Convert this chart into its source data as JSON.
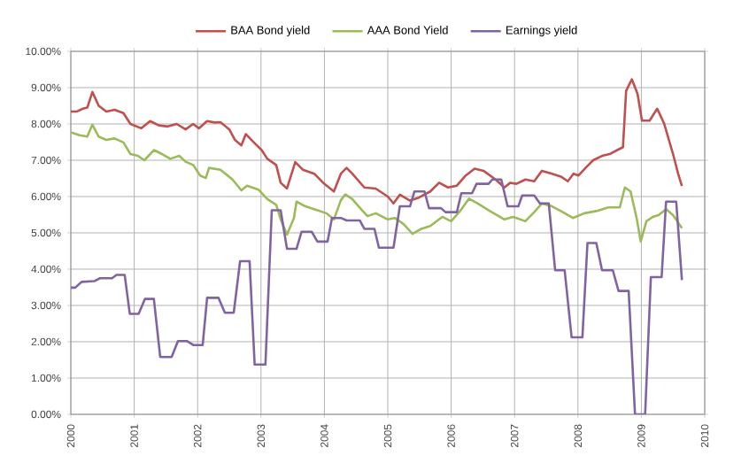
{
  "chart_data": {
    "type": "line",
    "xlim": [
      2000,
      2010
    ],
    "ylim": [
      0,
      10
    ],
    "xticks": [
      2000,
      2001,
      2002,
      2003,
      2004,
      2005,
      2006,
      2007,
      2008,
      2009,
      2010
    ],
    "yticks": [
      {
        "value": 0,
        "label": "0.00%"
      },
      {
        "value": 1,
        "label": "1.00%"
      },
      {
        "value": 2,
        "label": "2.00%"
      },
      {
        "value": 3,
        "label": "3.00%"
      },
      {
        "value": 4,
        "label": "4.00%"
      },
      {
        "value": 5,
        "label": "5.00%"
      },
      {
        "value": 6,
        "label": "6.00%"
      },
      {
        "value": 7,
        "label": "7.00%"
      },
      {
        "value": 8,
        "label": "8.00%"
      },
      {
        "value": 9,
        "label": "9.00%"
      },
      {
        "value": 10,
        "label": "10.00%"
      }
    ],
    "grid": true,
    "legend": "top",
    "marker": "none",
    "line_style": "solid",
    "series": [
      {
        "name": "BAA Bond yield",
        "color": "#c0504d",
        "x": [
          2000.0,
          2000.09,
          2000.19,
          2000.26,
          2000.34,
          2000.44,
          2000.56,
          2000.69,
          2000.83,
          2000.94,
          2001.11,
          2001.25,
          2001.39,
          2001.53,
          2001.67,
          2001.81,
          2001.93,
          2002.02,
          2002.15,
          2002.27,
          2002.36,
          2002.5,
          2002.59,
          2002.69,
          2002.76,
          2002.87,
          2003.01,
          2003.1,
          2003.24,
          2003.31,
          2003.41,
          2003.54,
          2003.66,
          2003.84,
          2003.98,
          2004.15,
          2004.26,
          2004.35,
          2004.44,
          2004.63,
          2004.81,
          2005.0,
          2005.09,
          2005.19,
          2005.35,
          2005.49,
          2005.67,
          2005.81,
          2005.95,
          2006.09,
          2006.23,
          2006.37,
          2006.51,
          2006.7,
          2006.84,
          2006.93,
          2007.03,
          2007.17,
          2007.31,
          2007.43,
          2007.59,
          2007.73,
          2007.84,
          2007.93,
          2008.01,
          2008.12,
          2008.24,
          2008.38,
          2008.5,
          2008.62,
          2008.71,
          2008.76,
          2008.85,
          2008.94,
          2009.01,
          2009.13,
          2009.25,
          2009.36,
          2009.5,
          2009.58,
          2009.64
        ],
        "values": [
          8.34,
          8.34,
          8.42,
          8.45,
          8.88,
          8.5,
          8.34,
          8.39,
          8.3,
          8.0,
          7.88,
          8.08,
          7.96,
          7.93,
          8.0,
          7.85,
          8.0,
          7.88,
          8.08,
          8.04,
          8.05,
          7.85,
          7.56,
          7.41,
          7.72,
          7.52,
          7.28,
          7.04,
          6.87,
          6.38,
          6.22,
          6.95,
          6.74,
          6.63,
          6.38,
          6.14,
          6.63,
          6.79,
          6.63,
          6.25,
          6.22,
          6.0,
          5.81,
          6.05,
          5.89,
          5.97,
          6.14,
          6.38,
          6.25,
          6.3,
          6.58,
          6.77,
          6.71,
          6.47,
          6.25,
          6.38,
          6.35,
          6.47,
          6.42,
          6.71,
          6.63,
          6.55,
          6.42,
          6.63,
          6.58,
          6.79,
          7.0,
          7.12,
          7.17,
          7.28,
          7.36,
          8.91,
          9.23,
          8.83,
          8.09,
          8.09,
          8.42,
          8.01,
          7.17,
          6.63,
          6.29
        ]
      },
      {
        "name": "AAA Bond Yield",
        "color": "#9bbb59",
        "x": [
          2000.0,
          2000.14,
          2000.26,
          2000.34,
          2000.44,
          2000.56,
          2000.69,
          2000.83,
          2000.94,
          2001.06,
          2001.16,
          2001.31,
          2001.44,
          2001.57,
          2001.71,
          2001.81,
          2001.93,
          2002.04,
          2002.13,
          2002.18,
          2002.36,
          2002.55,
          2002.69,
          2002.78,
          2002.96,
          2003.1,
          2003.24,
          2003.31,
          2003.41,
          2003.52,
          2003.56,
          2003.7,
          2003.89,
          2004.03,
          2004.15,
          2004.26,
          2004.33,
          2004.44,
          2004.58,
          2004.68,
          2004.81,
          2005.0,
          2005.11,
          2005.25,
          2005.39,
          2005.53,
          2005.67,
          2005.86,
          2006.0,
          2006.14,
          2006.28,
          2006.42,
          2006.61,
          2006.84,
          2006.98,
          2007.17,
          2007.31,
          2007.43,
          2007.59,
          2007.73,
          2007.92,
          2008.1,
          2008.29,
          2008.48,
          2008.66,
          2008.74,
          2008.83,
          2008.93,
          2008.99,
          2009.08,
          2009.18,
          2009.27,
          2009.39,
          2009.5,
          2009.64
        ],
        "values": [
          7.77,
          7.69,
          7.65,
          7.98,
          7.65,
          7.56,
          7.6,
          7.49,
          7.17,
          7.12,
          7.0,
          7.28,
          7.17,
          7.04,
          7.12,
          6.96,
          6.87,
          6.58,
          6.51,
          6.79,
          6.74,
          6.47,
          6.17,
          6.3,
          6.19,
          5.93,
          5.77,
          5.37,
          4.95,
          5.41,
          5.86,
          5.73,
          5.62,
          5.54,
          5.37,
          5.9,
          6.06,
          5.93,
          5.65,
          5.46,
          5.54,
          5.37,
          5.41,
          5.24,
          4.97,
          5.11,
          5.19,
          5.44,
          5.32,
          5.6,
          5.94,
          5.81,
          5.6,
          5.37,
          5.44,
          5.32,
          5.57,
          5.81,
          5.73,
          5.6,
          5.41,
          5.54,
          5.6,
          5.7,
          5.7,
          6.25,
          6.14,
          5.37,
          4.76,
          5.32,
          5.44,
          5.49,
          5.65,
          5.49,
          5.13
        ]
      },
      {
        "name": "Earnings yield",
        "color": "#8064a2",
        "x": [
          2000.0,
          2000.07,
          2000.17,
          2000.37,
          2000.46,
          2000.65,
          2000.72,
          2000.85,
          2000.93,
          2001.07,
          2001.17,
          2001.31,
          2001.41,
          2001.59,
          2001.69,
          2001.83,
          2001.93,
          2002.08,
          2002.15,
          2002.33,
          2002.43,
          2002.57,
          2002.67,
          2002.82,
          2002.9,
          2003.07,
          2003.17,
          2003.31,
          2003.41,
          2003.56,
          2003.64,
          2003.8,
          2003.89,
          2004.05,
          2004.12,
          2004.26,
          2004.35,
          2004.56,
          2004.63,
          2004.79,
          2004.86,
          2005.0,
          2005.09,
          2005.19,
          2005.35,
          2005.42,
          2005.58,
          2005.65,
          2005.84,
          2005.91,
          2006.09,
          2006.16,
          2006.33,
          2006.4,
          2006.59,
          2006.65,
          2006.79,
          2006.89,
          2007.06,
          2007.12,
          2007.31,
          2007.4,
          2007.54,
          2007.64,
          2007.79,
          2007.9,
          2008.07,
          2008.15,
          2008.29,
          2008.38,
          2008.55,
          2008.64,
          2008.8,
          2008.9,
          2009.06,
          2009.15,
          2009.32,
          2009.39,
          2009.55,
          2009.64
        ],
        "values": [
          3.49,
          3.49,
          3.65,
          3.67,
          3.75,
          3.75,
          3.84,
          3.84,
          2.77,
          2.77,
          3.18,
          3.18,
          1.58,
          1.58,
          2.02,
          2.02,
          1.91,
          1.91,
          3.21,
          3.21,
          2.8,
          2.8,
          4.22,
          4.22,
          1.37,
          1.37,
          5.62,
          5.62,
          4.56,
          4.56,
          5.03,
          5.03,
          4.76,
          4.76,
          5.41,
          5.41,
          5.34,
          5.34,
          5.11,
          5.11,
          4.59,
          4.59,
          4.59,
          5.73,
          5.73,
          6.14,
          6.14,
          5.68,
          5.68,
          5.57,
          5.57,
          6.09,
          6.09,
          6.35,
          6.35,
          6.47,
          6.47,
          5.73,
          5.73,
          6.03,
          6.03,
          5.81,
          5.81,
          3.97,
          3.97,
          2.12,
          2.12,
          4.72,
          4.72,
          3.97,
          3.97,
          3.4,
          3.4,
          0.0,
          0.0,
          3.78,
          3.78,
          5.86,
          5.86,
          3.7
        ]
      }
    ]
  }
}
